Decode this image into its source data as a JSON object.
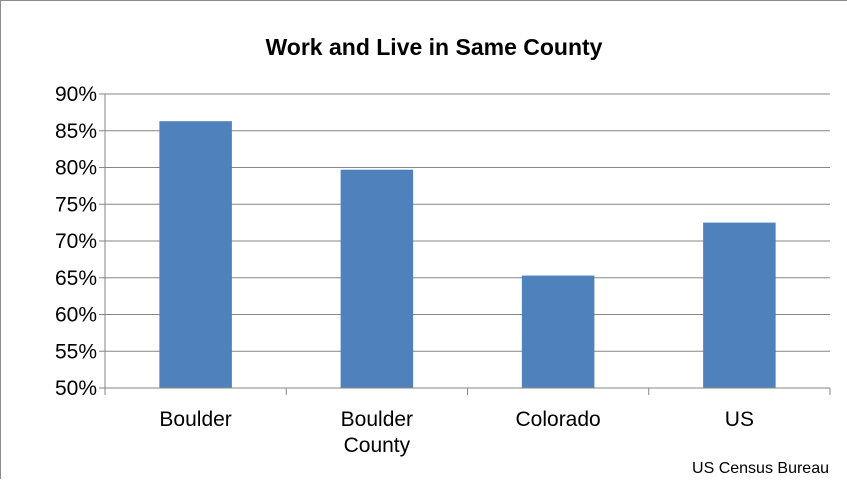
{
  "chart_data": {
    "type": "bar",
    "title": "Work and Live in Same County",
    "categories": [
      [
        "Boulder"
      ],
      [
        "Boulder",
        "County"
      ],
      [
        "Colorado"
      ],
      [
        "US"
      ]
    ],
    "values": [
      86.3,
      79.7,
      65.3,
      72.5
    ],
    "ylim": [
      50,
      90
    ],
    "y_ticks": [
      50,
      55,
      60,
      65,
      70,
      75,
      80,
      85,
      90
    ],
    "y_tick_format": "%",
    "xlabel": "",
    "ylabel": "",
    "grid": true,
    "bar_color": "#4f81bd",
    "gridline_color": "#868686",
    "source_note": "US Census Bureau"
  }
}
